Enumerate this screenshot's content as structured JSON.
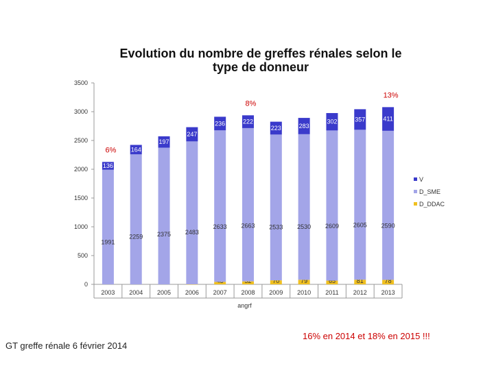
{
  "chart_data": {
    "type": "bar",
    "stacked": true,
    "title_lines": [
      "Evolution du nombre de greffes rénales selon le",
      "type de donneur"
    ],
    "xlabel": "angrf",
    "ylabel": "",
    "ylim": [
      0,
      3500
    ],
    "yticks": [
      0,
      500,
      1000,
      1500,
      2000,
      2500,
      3000,
      3500
    ],
    "categories": [
      "2003",
      "2004",
      "2005",
      "2006",
      "2007",
      "2008",
      "2009",
      "2010",
      "2011",
      "2012",
      "2013"
    ],
    "series": [
      {
        "name": "D_DDAC",
        "color": "#f0c020",
        "values": [
          0,
          0,
          0,
          1,
          43,
          52,
          70,
          79,
          65,
          81,
          78
        ]
      },
      {
        "name": "D_SME",
        "color": "#a3a5e8",
        "values": [
          1991,
          2259,
          2375,
          2483,
          2633,
          2663,
          2533,
          2530,
          2609,
          2605,
          2590
        ]
      },
      {
        "name": "V",
        "color": "#3a3acb",
        "values": [
          136,
          164,
          197,
          247,
          236,
          222,
          223,
          283,
          302,
          357,
          411
        ]
      }
    ],
    "legend": [
      "V",
      "D_SME",
      "D_DDAC"
    ],
    "legend_position": "right",
    "annotations": [
      {
        "text": "6%",
        "category": "2003"
      },
      {
        "text": "8%",
        "category": "2008"
      },
      {
        "text": "13%",
        "category": "2013"
      }
    ]
  },
  "footer": {
    "left": "GT greffe rénale 6 février 2014",
    "right": "16% en 2014 et 18% en 2015 !!!"
  }
}
